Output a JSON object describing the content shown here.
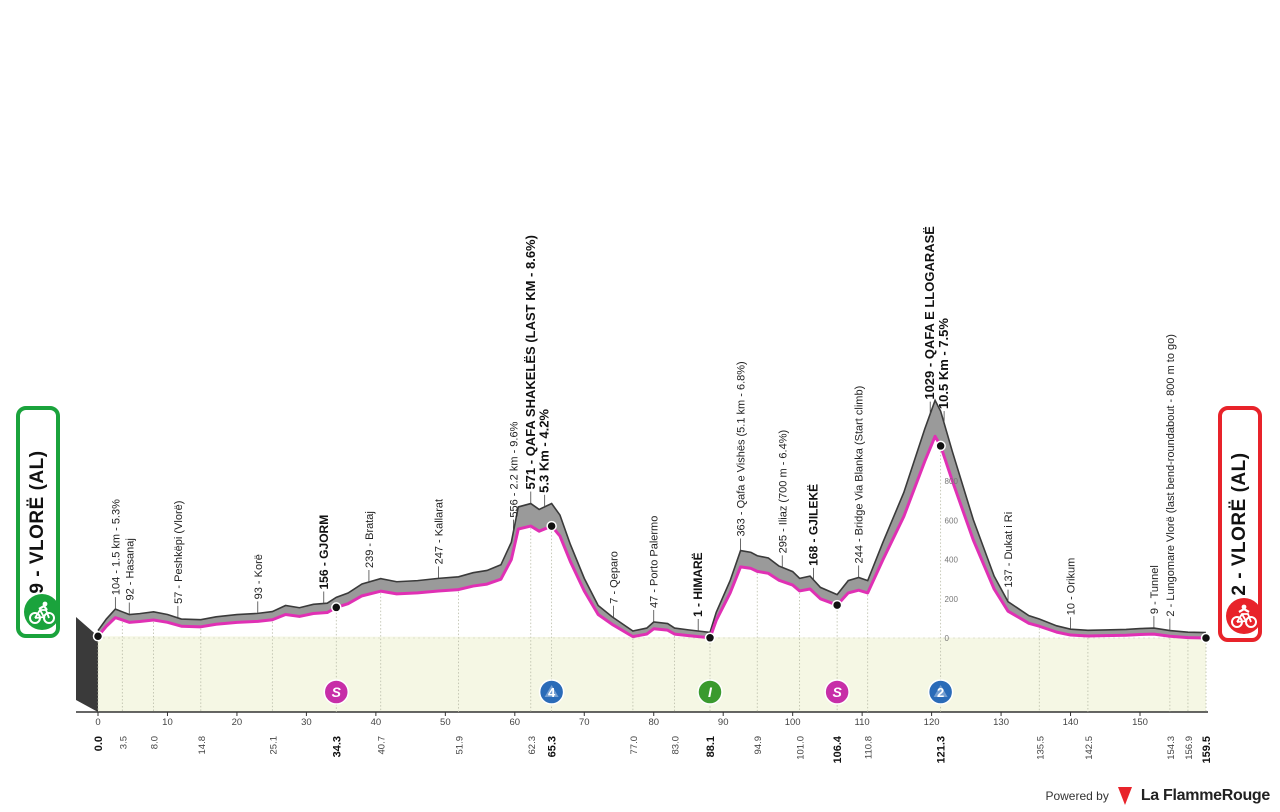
{
  "chart_data": {
    "type": "area",
    "title": "",
    "x_unit": "km",
    "y_unit": "m",
    "x_range": [
      0,
      159.5
    ],
    "y_range": [
      0,
      1029
    ],
    "start": {
      "label": "9 - VLORË (AL)",
      "color": "#1aa33c"
    },
    "finish": {
      "label": "2 - VLORË (AL)",
      "color": "#e8232a"
    },
    "colors": {
      "profile_fill": "#9a9a9a",
      "profile_top": "#3a3a3a",
      "ground_fill": "#f5f7e4",
      "road_line": "#e030b4"
    },
    "profile": [
      [
        0,
        9
      ],
      [
        1.2,
        60
      ],
      [
        2.5,
        104
      ],
      [
        3.5,
        92
      ],
      [
        4.5,
        80
      ],
      [
        6.0,
        84
      ],
      [
        8.0,
        92
      ],
      [
        10,
        80
      ],
      [
        12,
        60
      ],
      [
        14.8,
        57
      ],
      [
        17,
        70
      ],
      [
        20,
        80
      ],
      [
        23,
        85
      ],
      [
        25.1,
        93
      ],
      [
        27,
        120
      ],
      [
        29,
        110
      ],
      [
        31,
        125
      ],
      [
        33,
        130
      ],
      [
        34.3,
        156
      ],
      [
        36,
        175
      ],
      [
        38,
        215
      ],
      [
        40.7,
        239
      ],
      [
        43,
        225
      ],
      [
        46,
        230
      ],
      [
        49,
        240
      ],
      [
        51.9,
        247
      ],
      [
        54,
        265
      ],
      [
        56,
        275
      ],
      [
        58,
        300
      ],
      [
        59.5,
        400
      ],
      [
        60.5,
        556
      ],
      [
        62.3,
        571
      ],
      [
        63.5,
        545
      ],
      [
        65.3,
        571
      ],
      [
        66.5,
        520
      ],
      [
        68,
        390
      ],
      [
        70,
        240
      ],
      [
        72,
        120
      ],
      [
        74,
        70
      ],
      [
        77,
        7
      ],
      [
        79,
        20
      ],
      [
        80,
        47
      ],
      [
        82,
        40
      ],
      [
        83,
        20
      ],
      [
        85,
        12
      ],
      [
        88.1,
        1
      ],
      [
        89,
        90
      ],
      [
        91,
        230
      ],
      [
        92.5,
        363
      ],
      [
        94,
        355
      ],
      [
        94.9,
        340
      ],
      [
        96.5,
        330
      ],
      [
        98,
        295
      ],
      [
        100,
        270
      ],
      [
        101,
        240
      ],
      [
        102.5,
        250
      ],
      [
        104,
        200
      ],
      [
        106.4,
        168
      ],
      [
        108,
        230
      ],
      [
        109.5,
        244
      ],
      [
        110.8,
        230
      ],
      [
        113,
        400
      ],
      [
        116,
        620
      ],
      [
        119,
        900
      ],
      [
        120.5,
        1029
      ],
      [
        121.3,
        980
      ],
      [
        123,
        800
      ],
      [
        126,
        500
      ],
      [
        129,
        250
      ],
      [
        131,
        137
      ],
      [
        134,
        75
      ],
      [
        135.5,
        60
      ],
      [
        138,
        30
      ],
      [
        140,
        15
      ],
      [
        142.5,
        10
      ],
      [
        145,
        12
      ],
      [
        148,
        14
      ],
      [
        150,
        18
      ],
      [
        152,
        20
      ],
      [
        154.3,
        9
      ],
      [
        156.9,
        2
      ],
      [
        159.5,
        0
      ]
    ],
    "sprints": [
      {
        "km": 34.3,
        "icon": "S",
        "color": "#c72ea8"
      },
      {
        "km": 88.1,
        "icon": "I",
        "color": "#3a9a2e"
      },
      {
        "km": 106.4,
        "icon": "S",
        "color": "#c72ea8"
      }
    ],
    "climbs": [
      {
        "km": 65.3,
        "category": "4",
        "color": "#2a6bb8"
      },
      {
        "km": 121.3,
        "category": "2",
        "color": "#2a6bb8"
      }
    ],
    "annotations": [
      {
        "km": 2.5,
        "text": "104 - 1.5 km - 5.3%",
        "style": "normal"
      },
      {
        "km": 4.5,
        "text": "92 - Hasanaj",
        "style": "normal"
      },
      {
        "km": 11.5,
        "text": "57 - Peshkëpi (Vlorë)",
        "style": "normal"
      },
      {
        "km": 23,
        "text": "93 - Korë",
        "style": "normal"
      },
      {
        "km": 32.5,
        "text": "156 - GJORM",
        "style": "bold"
      },
      {
        "km": 39,
        "text": "239 - Brataj",
        "style": "normal"
      },
      {
        "km": 49,
        "text": "247 - Kallarat",
        "style": "normal"
      },
      {
        "km": 59.8,
        "text": "556 - 2.2 km - 9.6%",
        "style": "normal"
      },
      {
        "km": 62.3,
        "text": "571 - QAFA SHAKELËS (LAST KM - 8.6%)",
        "style": "big"
      },
      {
        "km": 64.3,
        "text": "5.3 Km - 4.2%",
        "style": "big"
      },
      {
        "km": 74.2,
        "text": "7 - Qeparo",
        "style": "normal"
      },
      {
        "km": 80,
        "text": "47 - Porto Palermo",
        "style": "normal"
      },
      {
        "km": 86.4,
        "text": "1 - HIMARË",
        "style": "bold"
      },
      {
        "km": 92.5,
        "text": "363 - Qafa e Vishës (5.1 km - 6.8%)",
        "style": "normal"
      },
      {
        "km": 98.5,
        "text": "295 - Iliaz (700 m - 6.4%)",
        "style": "normal"
      },
      {
        "km": 103,
        "text": "168 - GJILEKË",
        "style": "bold"
      },
      {
        "km": 109.5,
        "text": "244 - Bridge Via Blanka (Start climb)",
        "style": "normal"
      },
      {
        "km": 119.8,
        "text": "1029 - QAFA E LLOGARASË",
        "style": "big"
      },
      {
        "km": 121.8,
        "text": "10.5 Km - 7.5%",
        "style": "big"
      },
      {
        "km": 131,
        "text": "137 - Dukat i Ri",
        "style": "normal"
      },
      {
        "km": 140,
        "text": "10 - Orikum",
        "style": "normal"
      },
      {
        "km": 152,
        "text": "9 - Tunnel",
        "style": "normal"
      },
      {
        "km": 154.3,
        "text": "2 - Lungomare Vlorë (last bend-roundabout - 800 m to go)",
        "style": "normal"
      }
    ],
    "km_axis_ticks": [
      0,
      10,
      20,
      30,
      40,
      50,
      60,
      70,
      80,
      90,
      100,
      110,
      120,
      130,
      140,
      150
    ],
    "elevation_ticks": [
      0,
      200,
      400,
      600,
      800
    ],
    "elevation_tick_km": 121,
    "km_markers": [
      {
        "km": 0.0,
        "label": "0.0",
        "bold": true
      },
      {
        "km": 3.5,
        "label": "3.5",
        "bold": false
      },
      {
        "km": 8.0,
        "label": "8.0",
        "bold": false
      },
      {
        "km": 14.8,
        "label": "14.8",
        "bold": false
      },
      {
        "km": 25.1,
        "label": "25.1",
        "bold": false
      },
      {
        "km": 34.3,
        "label": "34.3",
        "bold": true
      },
      {
        "km": 40.7,
        "label": "40.7",
        "bold": false
      },
      {
        "km": 51.9,
        "label": "51.9",
        "bold": false
      },
      {
        "km": 62.3,
        "label": "62.3",
        "bold": false
      },
      {
        "km": 65.3,
        "label": "65.3",
        "bold": true
      },
      {
        "km": 77.0,
        "label": "77.0",
        "bold": false
      },
      {
        "km": 83.0,
        "label": "83.0",
        "bold": false
      },
      {
        "km": 88.1,
        "label": "88.1",
        "bold": true
      },
      {
        "km": 94.9,
        "label": "94.9",
        "bold": false
      },
      {
        "km": 101.0,
        "label": "101.0",
        "bold": false
      },
      {
        "km": 106.4,
        "label": "106.4",
        "bold": true
      },
      {
        "km": 110.8,
        "label": "110.8",
        "bold": false
      },
      {
        "km": 121.3,
        "label": "121.3",
        "bold": true
      },
      {
        "km": 135.5,
        "label": "135.5",
        "bold": false
      },
      {
        "km": 142.5,
        "label": "142.5",
        "bold": false
      },
      {
        "km": 154.3,
        "label": "154.3",
        "bold": false
      },
      {
        "km": 156.9,
        "label": "156.9",
        "bold": false
      },
      {
        "km": 159.5,
        "label": "159.5",
        "bold": true
      }
    ],
    "dot_markers": [
      0,
      34.3,
      65.3,
      88.1,
      106.4,
      121.3,
      159.5
    ]
  },
  "footer": {
    "powered_by": "Powered by",
    "brand": "La FlammeRouge"
  }
}
